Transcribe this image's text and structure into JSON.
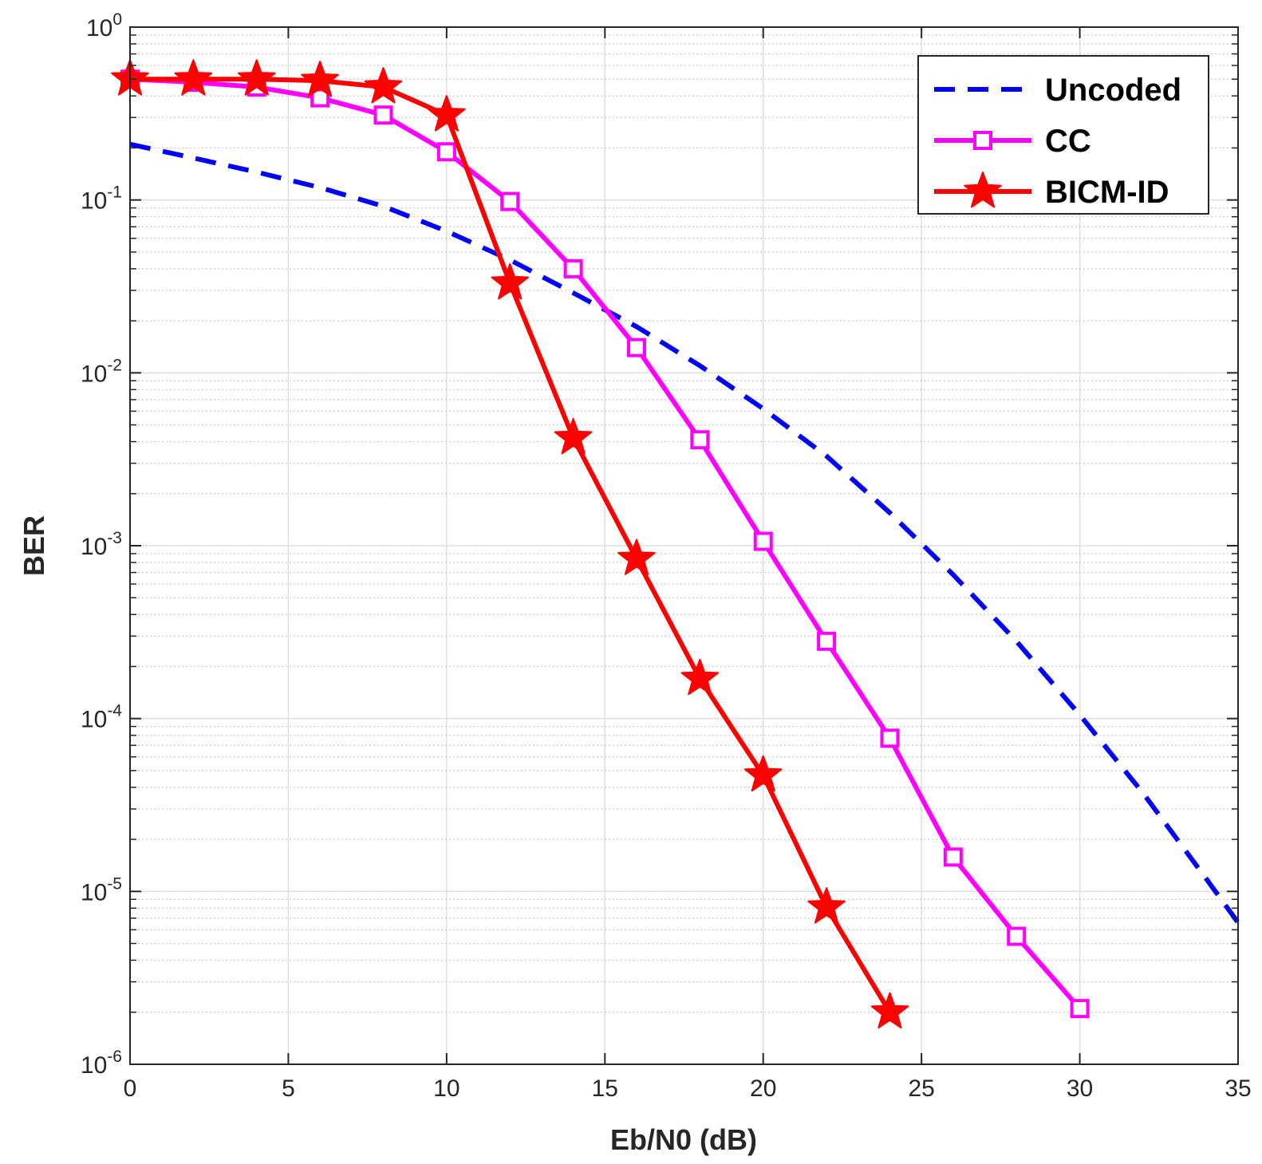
{
  "chart_data": {
    "type": "line",
    "title": "",
    "xlabel": "Eb/N0 (dB)",
    "ylabel": "BER",
    "xlim": [
      0,
      35
    ],
    "ylim_log10": [
      -6,
      0
    ],
    "yscale": "log",
    "grid": true,
    "legend_position": "top-right",
    "x_ticks": [
      "0",
      "5",
      "10",
      "15",
      "20",
      "25",
      "30",
      "35"
    ],
    "y_tick_base": "10",
    "y_tick_exponents": [
      "-6",
      "-5",
      "-4",
      "-3",
      "-2",
      "-1",
      "0"
    ],
    "series": [
      {
        "name": "Uncoded",
        "color": "#0000ff",
        "style": "dashed",
        "marker": "none",
        "x": [
          0,
          2,
          4,
          6,
          8,
          10,
          12,
          14,
          16,
          18,
          20,
          22,
          24,
          26,
          28,
          30,
          32,
          34,
          35
        ],
        "y": [
          0.21,
          0.175,
          0.145,
          0.118,
          0.092,
          0.066,
          0.045,
          0.029,
          0.0185,
          0.011,
          0.0062,
          0.0033,
          0.00155,
          0.00068,
          0.00028,
          0.000105,
          3.7e-05,
          1.18e-05,
          6.6e-06
        ]
      },
      {
        "name": "CC",
        "color": "#ff00ff",
        "style": "solid",
        "marker": "square",
        "x": [
          0,
          2,
          4,
          6,
          8,
          10,
          12,
          14,
          16,
          18,
          20,
          22,
          24,
          26,
          28,
          30
        ],
        "y": [
          0.5,
          0.48,
          0.45,
          0.39,
          0.31,
          0.19,
          0.098,
          0.04,
          0.014,
          0.0041,
          0.00106,
          0.00028,
          7.7e-05,
          1.58e-05,
          5.5e-06,
          2.1e-06
        ]
      },
      {
        "name": "BICM-ID",
        "color": "#ff0000",
        "style": "solid",
        "marker": "star",
        "x": [
          0,
          2,
          4,
          6,
          8,
          10,
          12,
          14,
          16,
          18,
          20,
          22,
          24
        ],
        "y": [
          0.5,
          0.5,
          0.5,
          0.49,
          0.45,
          0.31,
          0.033,
          0.0042,
          0.00084,
          0.00017,
          4.7e-05,
          8.1e-06,
          2e-06
        ]
      }
    ]
  }
}
